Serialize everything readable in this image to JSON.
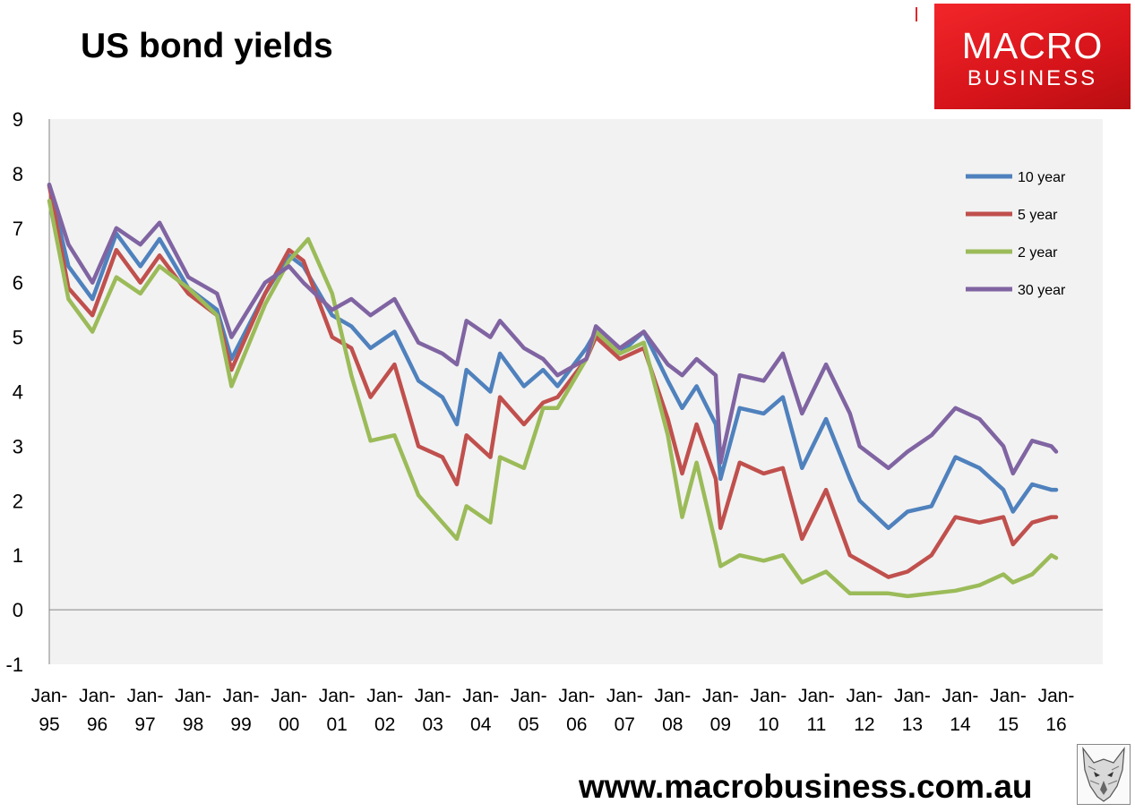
{
  "header": {
    "title": "US bond yields"
  },
  "logo": {
    "line1": "MACRO",
    "line2": "BUSINESS",
    "color": "#e2262a"
  },
  "footer": {
    "website": "www.macrobusiness.com.au"
  },
  "watermark": {
    "icon": "wolf-icon"
  },
  "chart_data": {
    "type": "line",
    "title": "US bond yields",
    "xlabel": "",
    "ylabel": "",
    "ylim": [
      -1,
      9
    ],
    "yticks": [
      -1,
      0,
      1,
      2,
      3,
      4,
      5,
      6,
      7,
      8,
      9
    ],
    "xlim": [
      1995.0,
      2016.0
    ],
    "x_tick_labels": [
      {
        "line1": "Jan-",
        "line2": "95",
        "x": 1995
      },
      {
        "line1": "Jan-",
        "line2": "96",
        "x": 1996
      },
      {
        "line1": "Jan-",
        "line2": "97",
        "x": 1997
      },
      {
        "line1": "Jan-",
        "line2": "98",
        "x": 1998
      },
      {
        "line1": "Jan-",
        "line2": "99",
        "x": 1999
      },
      {
        "line1": "Jan-",
        "line2": "00",
        "x": 2000
      },
      {
        "line1": "Jan-",
        "line2": "01",
        "x": 2001
      },
      {
        "line1": "Jan-",
        "line2": "02",
        "x": 2002
      },
      {
        "line1": "Jan-",
        "line2": "03",
        "x": 2003
      },
      {
        "line1": "Jan-",
        "line2": "04",
        "x": 2004
      },
      {
        "line1": "Jan-",
        "line2": "05",
        "x": 2005
      },
      {
        "line1": "Jan-",
        "line2": "06",
        "x": 2006
      },
      {
        "line1": "Jan-",
        "line2": "07",
        "x": 2007
      },
      {
        "line1": "Jan-",
        "line2": "08",
        "x": 2008
      },
      {
        "line1": "Jan-",
        "line2": "09",
        "x": 2009
      },
      {
        "line1": "Jan-",
        "line2": "10",
        "x": 2010
      },
      {
        "line1": "Jan-",
        "line2": "11",
        "x": 2011
      },
      {
        "line1": "Jan-",
        "line2": "12",
        "x": 2012
      },
      {
        "line1": "Jan-",
        "line2": "13",
        "x": 2013
      },
      {
        "line1": "Jan-",
        "line2": "14",
        "x": 2014
      },
      {
        "line1": "Jan-",
        "line2": "15",
        "x": 2015
      },
      {
        "line1": "Jan-",
        "line2": "16",
        "x": 2016
      }
    ],
    "grid": false,
    "background": "#f2f2f2",
    "legend_position": "top-right",
    "series": [
      {
        "name": "10 year",
        "color": "#4f81bd",
        "points": [
          [
            1995.0,
            7.78
          ],
          [
            1995.4,
            6.3
          ],
          [
            1995.9,
            5.7
          ],
          [
            1996.4,
            6.9
          ],
          [
            1996.9,
            6.3
          ],
          [
            1997.3,
            6.8
          ],
          [
            1997.9,
            5.9
          ],
          [
            1998.5,
            5.5
          ],
          [
            1998.8,
            4.6
          ],
          [
            1999.5,
            5.8
          ],
          [
            2000.0,
            6.5
          ],
          [
            2000.3,
            6.3
          ],
          [
            2000.9,
            5.4
          ],
          [
            2001.3,
            5.2
          ],
          [
            2001.7,
            4.8
          ],
          [
            2002.2,
            5.1
          ],
          [
            2002.7,
            4.2
          ],
          [
            2003.2,
            3.9
          ],
          [
            2003.5,
            3.4
          ],
          [
            2003.7,
            4.4
          ],
          [
            2004.2,
            4.0
          ],
          [
            2004.4,
            4.7
          ],
          [
            2004.9,
            4.1
          ],
          [
            2005.3,
            4.4
          ],
          [
            2005.6,
            4.1
          ],
          [
            2006.2,
            4.8
          ],
          [
            2006.4,
            5.1
          ],
          [
            2006.9,
            4.7
          ],
          [
            2007.4,
            5.1
          ],
          [
            2007.9,
            4.2
          ],
          [
            2008.2,
            3.7
          ],
          [
            2008.5,
            4.1
          ],
          [
            2008.9,
            3.4
          ],
          [
            2009.0,
            2.4
          ],
          [
            2009.4,
            3.7
          ],
          [
            2009.9,
            3.6
          ],
          [
            2010.3,
            3.9
          ],
          [
            2010.7,
            2.6
          ],
          [
            2011.2,
            3.5
          ],
          [
            2011.7,
            2.4
          ],
          [
            2011.9,
            2.0
          ],
          [
            2012.5,
            1.5
          ],
          [
            2012.9,
            1.8
          ],
          [
            2013.4,
            1.9
          ],
          [
            2013.9,
            2.8
          ],
          [
            2014.4,
            2.6
          ],
          [
            2014.9,
            2.2
          ],
          [
            2015.1,
            1.8
          ],
          [
            2015.5,
            2.3
          ],
          [
            2015.9,
            2.2
          ],
          [
            2016.0,
            2.2
          ]
        ]
      },
      {
        "name": "5 year",
        "color": "#c0504d",
        "points": [
          [
            1995.0,
            7.78
          ],
          [
            1995.4,
            5.9
          ],
          [
            1995.9,
            5.4
          ],
          [
            1996.4,
            6.6
          ],
          [
            1996.9,
            6.0
          ],
          [
            1997.3,
            6.5
          ],
          [
            1997.9,
            5.8
          ],
          [
            1998.5,
            5.4
          ],
          [
            1998.8,
            4.4
          ],
          [
            1999.5,
            5.8
          ],
          [
            2000.0,
            6.6
          ],
          [
            2000.3,
            6.4
          ],
          [
            2000.9,
            5.0
          ],
          [
            2001.3,
            4.8
          ],
          [
            2001.7,
            3.9
          ],
          [
            2002.2,
            4.5
          ],
          [
            2002.7,
            3.0
          ],
          [
            2003.2,
            2.8
          ],
          [
            2003.5,
            2.3
          ],
          [
            2003.7,
            3.2
          ],
          [
            2004.2,
            2.8
          ],
          [
            2004.4,
            3.9
          ],
          [
            2004.9,
            3.4
          ],
          [
            2005.3,
            3.8
          ],
          [
            2005.6,
            3.9
          ],
          [
            2006.2,
            4.6
          ],
          [
            2006.4,
            5.0
          ],
          [
            2006.9,
            4.6
          ],
          [
            2007.4,
            4.8
          ],
          [
            2007.9,
            3.5
          ],
          [
            2008.2,
            2.5
          ],
          [
            2008.5,
            3.4
          ],
          [
            2008.9,
            2.4
          ],
          [
            2009.0,
            1.5
          ],
          [
            2009.4,
            2.7
          ],
          [
            2009.9,
            2.5
          ],
          [
            2010.3,
            2.6
          ],
          [
            2010.7,
            1.3
          ],
          [
            2011.2,
            2.2
          ],
          [
            2011.7,
            1.0
          ],
          [
            2011.9,
            0.9
          ],
          [
            2012.5,
            0.6
          ],
          [
            2012.9,
            0.7
          ],
          [
            2013.4,
            1.0
          ],
          [
            2013.9,
            1.7
          ],
          [
            2014.4,
            1.6
          ],
          [
            2014.9,
            1.7
          ],
          [
            2015.1,
            1.2
          ],
          [
            2015.5,
            1.6
          ],
          [
            2015.9,
            1.7
          ],
          [
            2016.0,
            1.7
          ]
        ]
      },
      {
        "name": "2 year",
        "color": "#9bbb59",
        "points": [
          [
            1995.0,
            7.5
          ],
          [
            1995.4,
            5.7
          ],
          [
            1995.9,
            5.1
          ],
          [
            1996.4,
            6.1
          ],
          [
            1996.9,
            5.8
          ],
          [
            1997.3,
            6.3
          ],
          [
            1997.9,
            5.9
          ],
          [
            1998.5,
            5.4
          ],
          [
            1998.8,
            4.1
          ],
          [
            1999.5,
            5.6
          ],
          [
            2000.0,
            6.4
          ],
          [
            2000.4,
            6.8
          ],
          [
            2000.9,
            5.8
          ],
          [
            2001.3,
            4.3
          ],
          [
            2001.7,
            3.1
          ],
          [
            2002.2,
            3.2
          ],
          [
            2002.7,
            2.1
          ],
          [
            2003.2,
            1.6
          ],
          [
            2003.5,
            1.3
          ],
          [
            2003.7,
            1.9
          ],
          [
            2004.2,
            1.6
          ],
          [
            2004.4,
            2.8
          ],
          [
            2004.9,
            2.6
          ],
          [
            2005.3,
            3.7
          ],
          [
            2005.6,
            3.7
          ],
          [
            2006.2,
            4.6
          ],
          [
            2006.4,
            5.1
          ],
          [
            2006.9,
            4.7
          ],
          [
            2007.4,
            4.9
          ],
          [
            2007.9,
            3.2
          ],
          [
            2008.2,
            1.7
          ],
          [
            2008.5,
            2.7
          ],
          [
            2008.9,
            1.2
          ],
          [
            2009.0,
            0.8
          ],
          [
            2009.4,
            1.0
          ],
          [
            2009.9,
            0.9
          ],
          [
            2010.3,
            1.0
          ],
          [
            2010.7,
            0.5
          ],
          [
            2011.2,
            0.7
          ],
          [
            2011.7,
            0.3
          ],
          [
            2011.9,
            0.3
          ],
          [
            2012.5,
            0.3
          ],
          [
            2012.9,
            0.25
          ],
          [
            2013.4,
            0.3
          ],
          [
            2013.9,
            0.35
          ],
          [
            2014.4,
            0.45
          ],
          [
            2014.9,
            0.65
          ],
          [
            2015.1,
            0.5
          ],
          [
            2015.5,
            0.65
          ],
          [
            2015.9,
            1.0
          ],
          [
            2016.0,
            0.95
          ]
        ]
      },
      {
        "name": "30 year",
        "color": "#8064a2",
        "points": [
          [
            1995.0,
            7.8
          ],
          [
            1995.4,
            6.7
          ],
          [
            1995.9,
            6.0
          ],
          [
            1996.4,
            7.0
          ],
          [
            1996.9,
            6.7
          ],
          [
            1997.3,
            7.1
          ],
          [
            1997.9,
            6.1
          ],
          [
            1998.5,
            5.8
          ],
          [
            1998.8,
            5.0
          ],
          [
            1999.5,
            6.0
          ],
          [
            2000.0,
            6.3
          ],
          [
            2000.3,
            6.0
          ],
          [
            2000.9,
            5.5
          ],
          [
            2001.3,
            5.7
          ],
          [
            2001.7,
            5.4
          ],
          [
            2002.2,
            5.7
          ],
          [
            2002.7,
            4.9
          ],
          [
            2003.2,
            4.7
          ],
          [
            2003.5,
            4.5
          ],
          [
            2003.7,
            5.3
          ],
          [
            2004.2,
            5.0
          ],
          [
            2004.4,
            5.3
          ],
          [
            2004.9,
            4.8
          ],
          [
            2005.3,
            4.6
          ],
          [
            2005.6,
            4.3
          ],
          [
            2006.2,
            4.6
          ],
          [
            2006.4,
            5.2
          ],
          [
            2006.9,
            4.8
          ],
          [
            2007.4,
            5.1
          ],
          [
            2007.9,
            4.5
          ],
          [
            2008.2,
            4.3
          ],
          [
            2008.5,
            4.6
          ],
          [
            2008.9,
            4.3
          ],
          [
            2009.0,
            2.7
          ],
          [
            2009.4,
            4.3
          ],
          [
            2009.9,
            4.2
          ],
          [
            2010.3,
            4.7
          ],
          [
            2010.7,
            3.6
          ],
          [
            2011.2,
            4.5
          ],
          [
            2011.7,
            3.6
          ],
          [
            2011.9,
            3.0
          ],
          [
            2012.5,
            2.6
          ],
          [
            2012.9,
            2.9
          ],
          [
            2013.4,
            3.2
          ],
          [
            2013.9,
            3.7
          ],
          [
            2014.4,
            3.5
          ],
          [
            2014.9,
            3.0
          ],
          [
            2015.1,
            2.5
          ],
          [
            2015.5,
            3.1
          ],
          [
            2015.9,
            3.0
          ],
          [
            2016.0,
            2.9
          ]
        ]
      }
    ]
  }
}
